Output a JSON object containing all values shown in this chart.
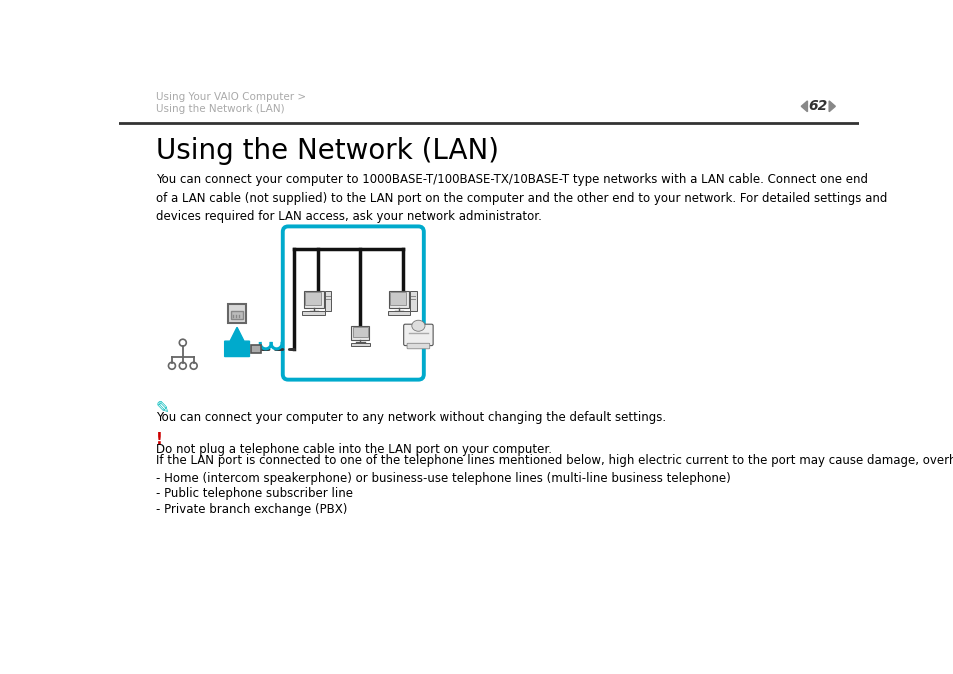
{
  "bg_color": "#ffffff",
  "header_text_line1": "Using Your VAIO Computer >",
  "header_text_line2": "Using the Network (LAN)",
  "page_number": "62",
  "title": "Using the Network (LAN)",
  "body_text": "You can connect your computer to 1000BASE-T/100BASE-TX/10BASE-T type networks with a LAN cable. Connect one end\nof a LAN cable (not supplied) to the LAN port on the computer and the other end to your network. For detailed settings and\ndevices required for LAN access, ask your network administrator.",
  "note_text": "You can connect your computer to any network without changing the default settings.",
  "warning_line1": "Do not plug a telephone cable into the LAN port on your computer.",
  "warning_line2": "If the LAN port is connected to one of the telephone lines mentioned below, high electric current to the port may cause damage, overheating, or fire.",
  "bullet1": "- Home (intercom speakerphone) or business-use telephone lines (multi-line business telephone)",
  "bullet2": "- Public telephone subscriber line",
  "bullet3": "- Private branch exchange (PBX)",
  "header_color": "#aaaaaa",
  "title_color": "#000000",
  "body_color": "#000000",
  "note_icon_color": "#00bbbb",
  "warning_icon_color": "#cc0000",
  "box_border_color": "#00aacc",
  "arrow_color": "#00aacc",
  "line_color": "#000000",
  "header_fontsize": 7.5,
  "title_fontsize": 20,
  "body_fontsize": 8.5,
  "note_fontsize": 8.5,
  "warn_fontsize": 8.5,
  "pagenum_fontsize": 10
}
